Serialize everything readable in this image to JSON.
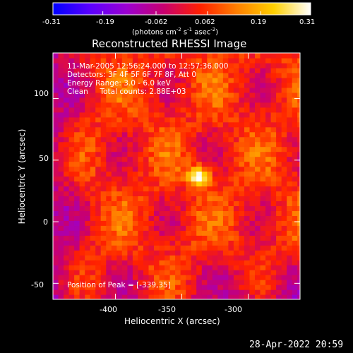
{
  "chart_data": {
    "type": "heatmap",
    "title": "Reconstructed RHESSI Image",
    "xlabel": "Heliocentric X (arcsec)",
    "ylabel": "Heliocentric Y (arcsec)",
    "xlim": [
      -447,
      -261
    ],
    "ylim": [
      -63,
      137
    ],
    "x_ticks": [
      "-400",
      "-350",
      "-300"
    ],
    "x_tick_values": [
      -400,
      -350,
      -300
    ],
    "y_ticks": [
      "-50",
      "0",
      "50",
      "100"
    ],
    "y_tick_values": [
      -50,
      0,
      50,
      100
    ],
    "colorbar": {
      "ticks": [
        "-0.31",
        "-0.19",
        "-0.062",
        "0.062",
        "0.19",
        "0.31"
      ],
      "tick_values": [
        -0.31,
        -0.19,
        -0.062,
        0.062,
        0.19,
        0.31
      ],
      "range": [
        -0.31,
        0.31
      ],
      "unit_label": "(photons cm",
      "unit_exp1": "-2",
      "unit_mid": " s",
      "unit_exp2": "-1",
      "unit_mid2": " asec",
      "unit_exp3": "-2",
      "unit_end": ")",
      "colormap": [
        "#0000ff",
        "#5a00ff",
        "#9b00d0",
        "#c80070",
        "#ff2000",
        "#ff8000",
        "#ffd000",
        "#ffffff"
      ]
    },
    "annotations": [
      "11-Mar-2005 12:56:24.000 to 12:57:36.000",
      "Detectors: 3F 4F 5F 6F 7F 8F, Att 0",
      "Energy Range: 3.0 - 6.0 keV",
      "Clean     Total counts: 2.88E+03",
      "Position of Peak = [-339,35]"
    ],
    "peak": {
      "x": -339,
      "y": 35
    },
    "grid": false
  },
  "footer": {
    "timestamp": "28-Apr-2022 20:59"
  }
}
